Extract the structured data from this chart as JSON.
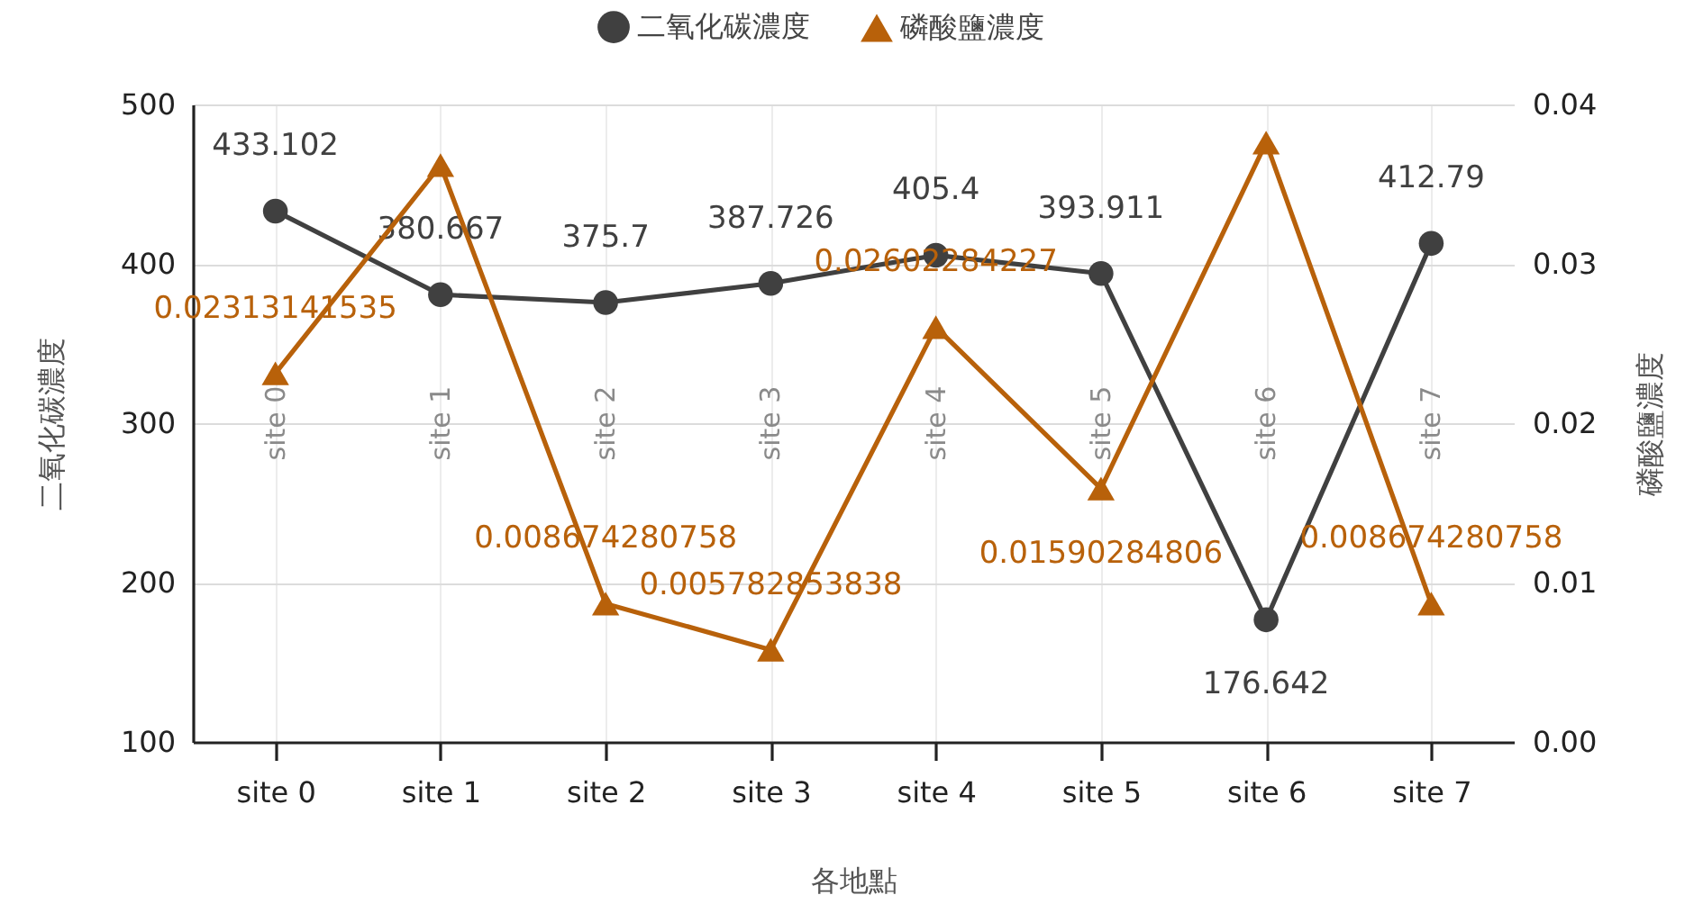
{
  "chart_data": {
    "type": "line",
    "xlabel": "各地點",
    "ylabel": "二氧化碳濃度",
    "y2label": "磷酸鹽濃度",
    "categories": [
      "site 0",
      "site 1",
      "site 2",
      "site 3",
      "site 4",
      "site 5",
      "site 6",
      "site 7"
    ],
    "series": [
      {
        "name": "二氧化碳濃度",
        "color": "#404040",
        "marker": "circle",
        "values": [
          433.102,
          380.667,
          375.7,
          387.726,
          405.4,
          393.911,
          176.642,
          412.79
        ],
        "value_labels": [
          "433.102",
          "380.667",
          "375.7",
          "387.726",
          "405.4",
          "393.911",
          "176.642",
          "412.79"
        ]
      },
      {
        "name": "磷酸鹽濃度",
        "color": "#b8610a",
        "marker": "triangle",
        "axis": "y2",
        "values": [
          0.02313141535,
          0.0362,
          0.008674280758,
          0.005782853838,
          0.02602284227,
          0.01590284806,
          0.0376,
          0.008674280758
        ],
        "value_labels": [
          "0.02313141535",
          null,
          "0.008674280758",
          "0.005782853838",
          "0.02602284227",
          "0.01590284806",
          null,
          "0.008674280758"
        ]
      }
    ],
    "ylim": [
      100,
      500
    ],
    "yticks": [
      100,
      200,
      300,
      400,
      500
    ],
    "y2lim": [
      0,
      0.04
    ],
    "y2ticks": [
      {
        "value": 0,
        "label": "0.00"
      },
      0.01,
      0.02,
      0.03,
      0.04
    ],
    "grid": true,
    "legend": "top",
    "line_style": "solid",
    "annotations": [
      "site 0",
      "site 1",
      "site 2",
      "site 3",
      "site 4",
      "site 5",
      "site 6",
      "site 7"
    ]
  }
}
